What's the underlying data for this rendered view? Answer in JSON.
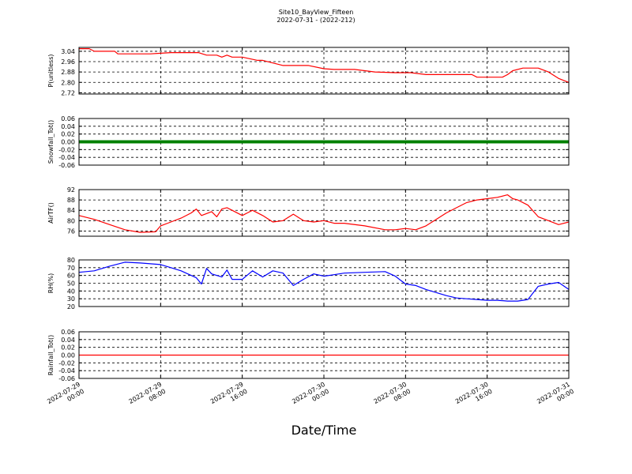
{
  "figure": {
    "title_line1": "Site10_BayView_Fifteen",
    "title_line2": "2022-07-31 - (2022-212)",
    "xlabel": "Date/Time",
    "x_ticks": [
      "2022-07-29\n00:00",
      "2022-07-29\n08:00",
      "2022-07-29\n16:00",
      "2022-07-30\n00:00",
      "2022-07-30\n08:00",
      "2022-07-30\n16:00",
      "2022-07-31\n00:00"
    ]
  },
  "chart_data": [
    {
      "type": "line",
      "ylabel": "P(unitless)",
      "color": "#ff0000",
      "ylim": [
        2.71,
        3.07
      ],
      "yticks": [
        "3.04",
        "2.96",
        "2.88",
        "2.80",
        "2.72"
      ],
      "ytick_values": [
        3.04,
        2.96,
        2.88,
        2.8,
        2.72
      ],
      "x_hours": [
        0,
        1,
        1.5,
        3.5,
        3.8,
        5,
        7,
        8,
        9,
        10,
        11,
        11.7,
        12.5,
        13.5,
        14,
        14.5,
        15,
        16,
        17.5,
        18,
        19,
        20,
        21.5,
        22.5,
        24,
        25,
        26,
        27,
        29,
        31,
        32.5,
        34,
        35,
        37,
        38.5,
        39,
        40,
        41.5,
        42,
        42.5,
        43.5,
        44.5,
        45,
        46,
        47,
        48
      ],
      "values": [
        3.06,
        3.06,
        3.04,
        3.04,
        3.02,
        3.02,
        3.02,
        3.025,
        3.03,
        3.03,
        3.03,
        3.03,
        3.01,
        3.01,
        2.995,
        3.01,
        2.995,
        2.995,
        2.97,
        2.97,
        2.95,
        2.93,
        2.93,
        2.93,
        2.905,
        2.9,
        2.9,
        2.9,
        2.88,
        2.875,
        2.875,
        2.86,
        2.86,
        2.86,
        2.86,
        2.84,
        2.84,
        2.84,
        2.86,
        2.89,
        2.91,
        2.91,
        2.91,
        2.88,
        2.83,
        2.8
      ]
    },
    {
      "type": "line",
      "ylabel": "Snowfall_Tot()",
      "color": "#008000",
      "ylim": [
        -0.06,
        0.06
      ],
      "yticks": [
        "0.06",
        "0.04",
        "0.02",
        "0.00",
        "-0.02",
        "-0.04",
        "-0.06"
      ],
      "ytick_values": [
        0.06,
        0.04,
        0.02,
        0.0,
        -0.02,
        -0.04,
        -0.06
      ],
      "x_hours": [
        0,
        48
      ],
      "values": [
        0,
        0
      ]
    },
    {
      "type": "line",
      "ylabel": "AirTF()",
      "color": "#ff0000",
      "ylim": [
        74,
        92
      ],
      "yticks": [
        "92",
        "88",
        "84",
        "80",
        "76"
      ],
      "ytick_values": [
        92,
        88,
        84,
        80,
        76
      ],
      "x_hours": [
        0,
        1.5,
        3,
        4.5,
        6,
        7.5,
        8,
        9,
        10,
        11,
        11.5,
        12,
        13,
        13.5,
        14,
        14.5,
        15,
        16,
        16.5,
        17,
        18,
        19,
        20,
        21,
        22,
        23,
        24,
        25,
        26,
        28,
        30,
        31,
        32,
        33,
        34,
        35,
        36,
        37,
        38,
        39,
        40,
        41,
        42,
        42.5,
        43,
        44,
        45,
        46,
        47,
        48
      ],
      "values": [
        82,
        80.5,
        78.5,
        76.5,
        75.5,
        75.7,
        78,
        79.5,
        81,
        83,
        84.5,
        82,
        83.5,
        81.5,
        84.5,
        85,
        84,
        82,
        83,
        84,
        82,
        79.5,
        80,
        82.5,
        80,
        79.5,
        80,
        79,
        79,
        78,
        76.5,
        76.5,
        77,
        76.5,
        78,
        80.5,
        83,
        85,
        87,
        88,
        88.5,
        89,
        90,
        88.5,
        88,
        86,
        81.5,
        80,
        78.5,
        79.5
      ]
    },
    {
      "type": "line",
      "ylabel": "RH(%)",
      "color": "#0000ff",
      "ylim": [
        20,
        80
      ],
      "yticks": [
        "80",
        "70",
        "60",
        "50",
        "40",
        "30",
        "20"
      ],
      "ytick_values": [
        80,
        70,
        60,
        50,
        40,
        30,
        20
      ],
      "x_hours": [
        0,
        1.5,
        3,
        4.5,
        6,
        7,
        8,
        9,
        10,
        11,
        11.5,
        12,
        12.5,
        13,
        14,
        14.5,
        15,
        16,
        17,
        18,
        19,
        20,
        21,
        22,
        23,
        24,
        25,
        26,
        28,
        30,
        31,
        32,
        33,
        34,
        35,
        36,
        37,
        38,
        39,
        40,
        41,
        42,
        43,
        43.5,
        44,
        45,
        46,
        47,
        48
      ],
      "values": [
        64,
        66,
        72,
        77,
        76,
        75,
        74,
        70,
        66,
        60,
        57,
        49,
        69,
        62,
        58,
        67,
        55,
        55,
        66,
        58,
        66,
        63,
        47,
        55,
        62,
        59,
        61,
        63,
        64,
        65,
        59,
        49,
        47,
        42,
        38,
        34,
        31,
        30,
        29,
        28,
        28,
        27,
        27,
        28,
        29,
        46,
        49,
        51,
        42
      ]
    },
    {
      "type": "line",
      "ylabel": "Rainfall_Tot()",
      "color": "#ff0000",
      "ylim": [
        -0.06,
        0.06
      ],
      "yticks": [
        "0.06",
        "0.04",
        "0.02",
        "0.00",
        "-0.02",
        "-0.04",
        "-0.06"
      ],
      "ytick_values": [
        0.06,
        0.04,
        0.02,
        0.0,
        -0.02,
        -0.04,
        -0.06
      ],
      "x_hours": [
        0,
        48
      ],
      "values": [
        0,
        0
      ]
    }
  ]
}
